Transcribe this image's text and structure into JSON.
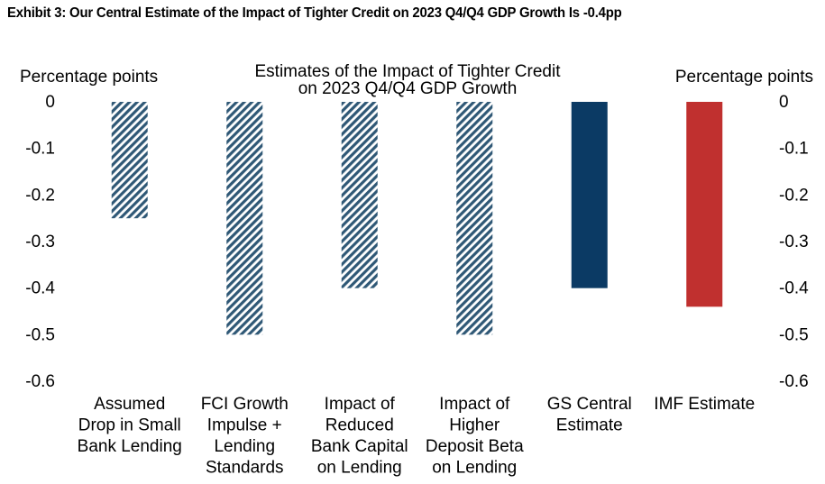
{
  "exhibit_title": "Exhibit 3: Our Central Estimate of the Impact of Tighter Credit on 2023 Q4/Q4 GDP Growth Is -0.4pp",
  "chart_data": {
    "type": "bar",
    "title_lines": [
      "Estimates of the Impact of Tighter Credit",
      "on 2023 Q4/Q4 GDP Growth"
    ],
    "ylabel_left": "Percentage points",
    "ylabel_right": "Percentage points",
    "ylim": [
      -0.6,
      0
    ],
    "yticks": [
      0,
      -0.1,
      -0.2,
      -0.3,
      -0.4,
      -0.5,
      -0.6
    ],
    "ytick_labels": [
      "0",
      "-0.1",
      "-0.2",
      "-0.3",
      "-0.4",
      "-0.5",
      "-0.6"
    ],
    "grid": false,
    "categories": [
      [
        "Assumed",
        "Drop in Small",
        "Bank Lending"
      ],
      [
        "FCI Growth",
        "Impulse +",
        "Lending",
        "Standards"
      ],
      [
        "Impact of",
        "Reduced",
        "Bank Capital",
        "on Lending"
      ],
      [
        "Impact of",
        "Higher",
        "Deposit Beta",
        "on Lending"
      ],
      [
        "GS Central",
        "Estimate"
      ],
      [
        "IMF Estimate"
      ]
    ],
    "values": [
      -0.25,
      -0.5,
      -0.4,
      -0.5,
      -0.4,
      -0.44
    ],
    "bar_styles": [
      "hatched",
      "hatched",
      "hatched",
      "hatched",
      "solid",
      "solid"
    ],
    "colors": {
      "hatch": "#2f5876",
      "gs_central": "#0b3a64",
      "imf": "#c0302f"
    },
    "bar_colors": [
      "#2f5876",
      "#2f5876",
      "#2f5876",
      "#2f5876",
      "#0b3a64",
      "#c0302f"
    ]
  }
}
